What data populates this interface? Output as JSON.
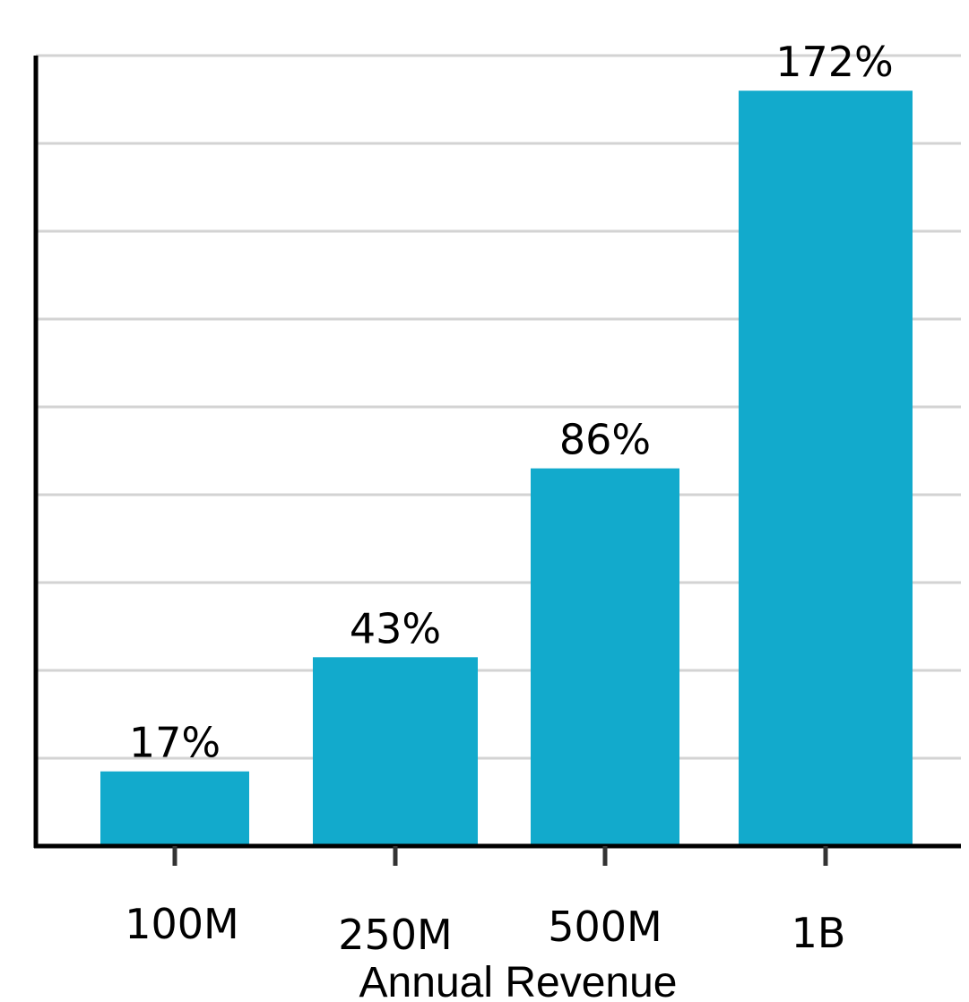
{
  "chart_data": {
    "type": "bar",
    "categories": [
      "100M",
      "250M",
      "500M",
      "1B"
    ],
    "values": [
      17,
      43,
      86,
      172
    ],
    "value_labels": [
      "17%",
      "43%",
      "86%",
      "172%"
    ],
    "title": "",
    "xlabel": "Annual Revenue",
    "ylabel": "",
    "ylim": [
      0,
      180
    ],
    "ytick_step": 20,
    "grid": true,
    "bar_color": "#12aacc",
    "grid_color": "#d3d3d3",
    "axis_color": "#000000"
  }
}
